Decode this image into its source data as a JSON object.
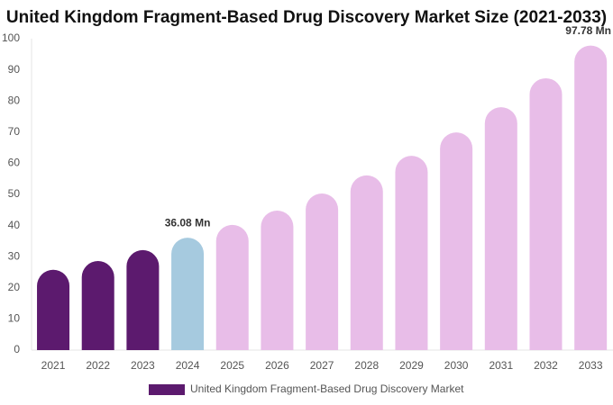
{
  "chart_data": {
    "type": "bar",
    "title": "United Kingdom Fragment-Based Drug Discovery Market Size (2021-2033)",
    "categories": [
      "2021",
      "2022",
      "2023",
      "2024",
      "2025",
      "2026",
      "2027",
      "2028",
      "2029",
      "2030",
      "2031",
      "2032",
      "2033"
    ],
    "series": [
      {
        "name": "United Kingdom Fragment-Based Drug Discovery Market",
        "color": "#5c1a6e",
        "values": [
          25.8,
          28.6,
          32.1,
          36.08,
          40.2,
          44.8,
          50.3,
          56.1,
          62.4,
          69.9,
          78.0,
          87.3,
          97.78
        ],
        "value_labels": [
          null,
          null,
          null,
          "36.08 Mn",
          null,
          null,
          null,
          null,
          null,
          null,
          null,
          null,
          "97.78 Mn"
        ],
        "colors": [
          "#5c1a6e",
          "#5c1a6e",
          "#5c1a6e",
          "#a6cadf",
          "#e8bde8",
          "#e8bde8",
          "#e8bde8",
          "#e8bde8",
          "#e8bde8",
          "#e8bde8",
          "#e8bde8",
          "#e8bde8",
          "#e8bde8"
        ]
      }
    ],
    "ylim": [
      0,
      100
    ],
    "yticks": [
      0,
      10,
      20,
      30,
      40,
      50,
      60,
      70,
      80,
      90,
      100
    ],
    "grid": false
  }
}
